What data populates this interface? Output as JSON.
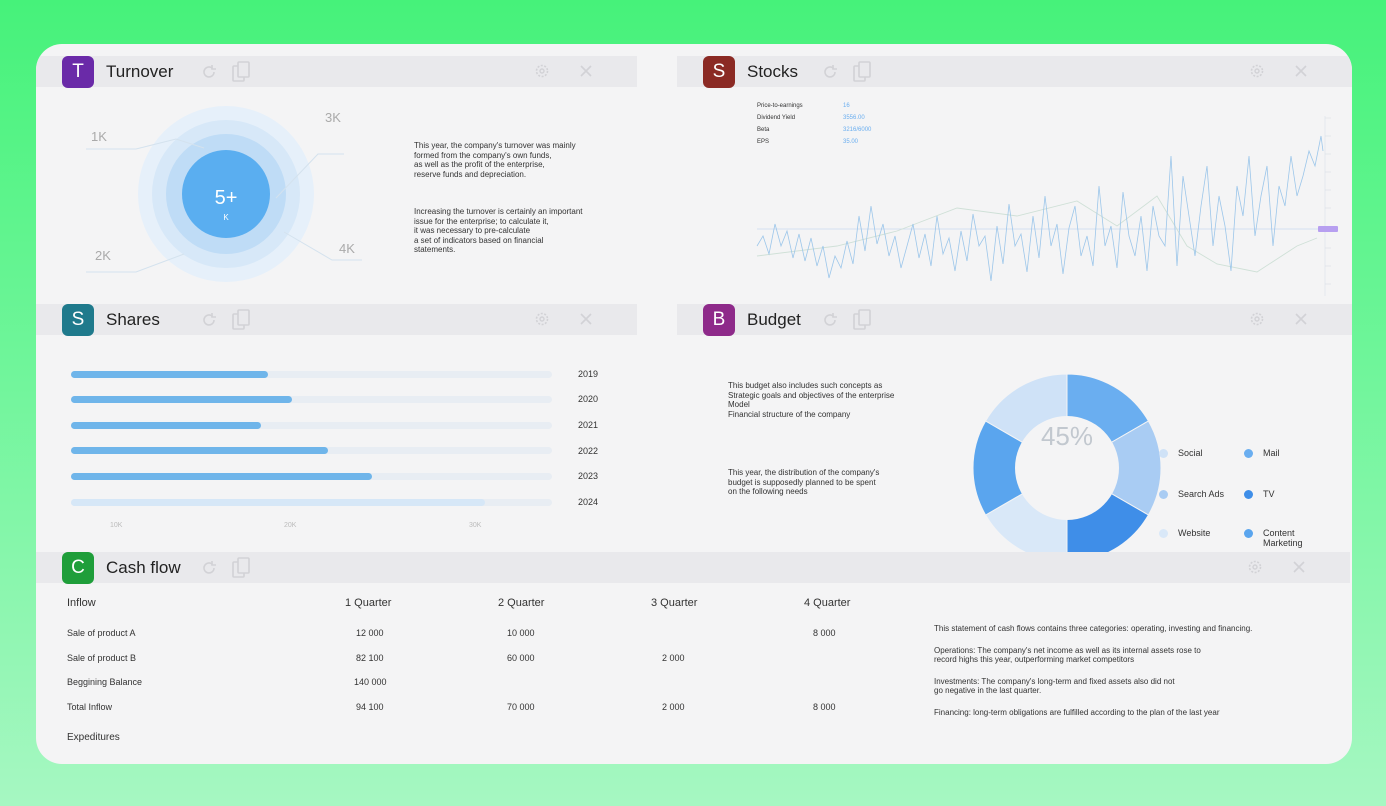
{
  "turnover": {
    "badge": "T",
    "title": "Turnover",
    "color": "#6a2aa8",
    "center_value": "5+",
    "center_unit": "K",
    "labels": [
      "1K",
      "3K",
      "2K",
      "4K"
    ],
    "text1": [
      "This year, the company's turnover was mainly",
      "formed from the company's own funds,",
      "as well as the profit of the enterprise,",
      "reserve funds and depreciation."
    ],
    "text2": [
      "Increasing the turnover is certainly an important",
      "issue for the enterprise; to calculate it,",
      "it was necessary to pre-calculate",
      "a set of indicators based on financial",
      "statements."
    ]
  },
  "stocks": {
    "badge": "S",
    "title": "Stocks",
    "color": "#8b2a24",
    "metrics": [
      {
        "label": "Price-to-earnings",
        "value": "16"
      },
      {
        "label": "Dividend Yield",
        "value": "3556.00"
      },
      {
        "label": "Beta",
        "value": "3216/6000"
      },
      {
        "label": "EPS",
        "value": "35.00"
      }
    ]
  },
  "shares": {
    "badge": "S",
    "title": "Shares",
    "color": "#1f7a8c",
    "rows": [
      {
        "year": "2019",
        "value": 0.41
      },
      {
        "year": "2020",
        "value": 0.46
      },
      {
        "year": "2021",
        "value": 0.395
      },
      {
        "year": "2022",
        "value": 0.535
      },
      {
        "year": "2023",
        "value": 0.625
      },
      {
        "year": "2024",
        "value": 0.86
      }
    ],
    "axis": [
      "10K",
      "20K",
      "30K"
    ]
  },
  "budget": {
    "badge": "B",
    "title": "Budget",
    "color": "#8e2a8a",
    "text1": [
      "This budget also includes such concepts as",
      "Strategic goals and objectives of the enterprise",
      "Model",
      "Financial structure of the company"
    ],
    "text2": [
      "This year, the distribution of the company's",
      "budget is supposedly planned to be spent",
      "on the following needs"
    ],
    "percent": "45%",
    "legend": [
      {
        "label": "Social",
        "color": "#cfe2f7"
      },
      {
        "label": "Mail",
        "color": "#6aaef0"
      },
      {
        "label": "Search Ads",
        "color": "#a9ccf3"
      },
      {
        "label": "TV",
        "color": "#3f8ee8"
      },
      {
        "label": "Website",
        "color": "#d9e8f8"
      },
      {
        "label": "Content Marketing",
        "color": "#5aa5ee"
      }
    ]
  },
  "cashflow": {
    "badge": "C",
    "title": "Cash flow",
    "color": "#1f9e3a",
    "headers": [
      "Inflow",
      "1 Quarter",
      "2 Quarter",
      "3 Quarter",
      "4 Quarter"
    ],
    "rows": [
      {
        "label": "Sale of product A",
        "q1": "12 000",
        "q2": "10 000",
        "q3": "",
        "q4": "8 000"
      },
      {
        "label": "Sale of product B",
        "q1": "82 100",
        "q2": "60 000",
        "q3": "2 000",
        "q4": ""
      },
      {
        "label": "Beggining Balance",
        "q1": "140 000",
        "q2": "",
        "q3": "",
        "q4": ""
      },
      {
        "label": "Total Inflow",
        "q1": "94 100",
        "q2": "70 000",
        "q3": "2 000",
        "q4": "8 000"
      }
    ],
    "expenditures": "Expeditures",
    "notes": [
      [
        "This statement of cash flows contains three categories: operating, investing and financing."
      ],
      [
        "Operations: The company's net income as well as its internal assets rose to",
        "record highs this year, outperforming market competitors"
      ],
      [
        "Investments: The company's long-term and fixed assets also did not",
        "go negative in the last quarter."
      ],
      [
        "Financing: long-term obligations are fulfilled according to the plan of the last year"
      ]
    ]
  }
}
